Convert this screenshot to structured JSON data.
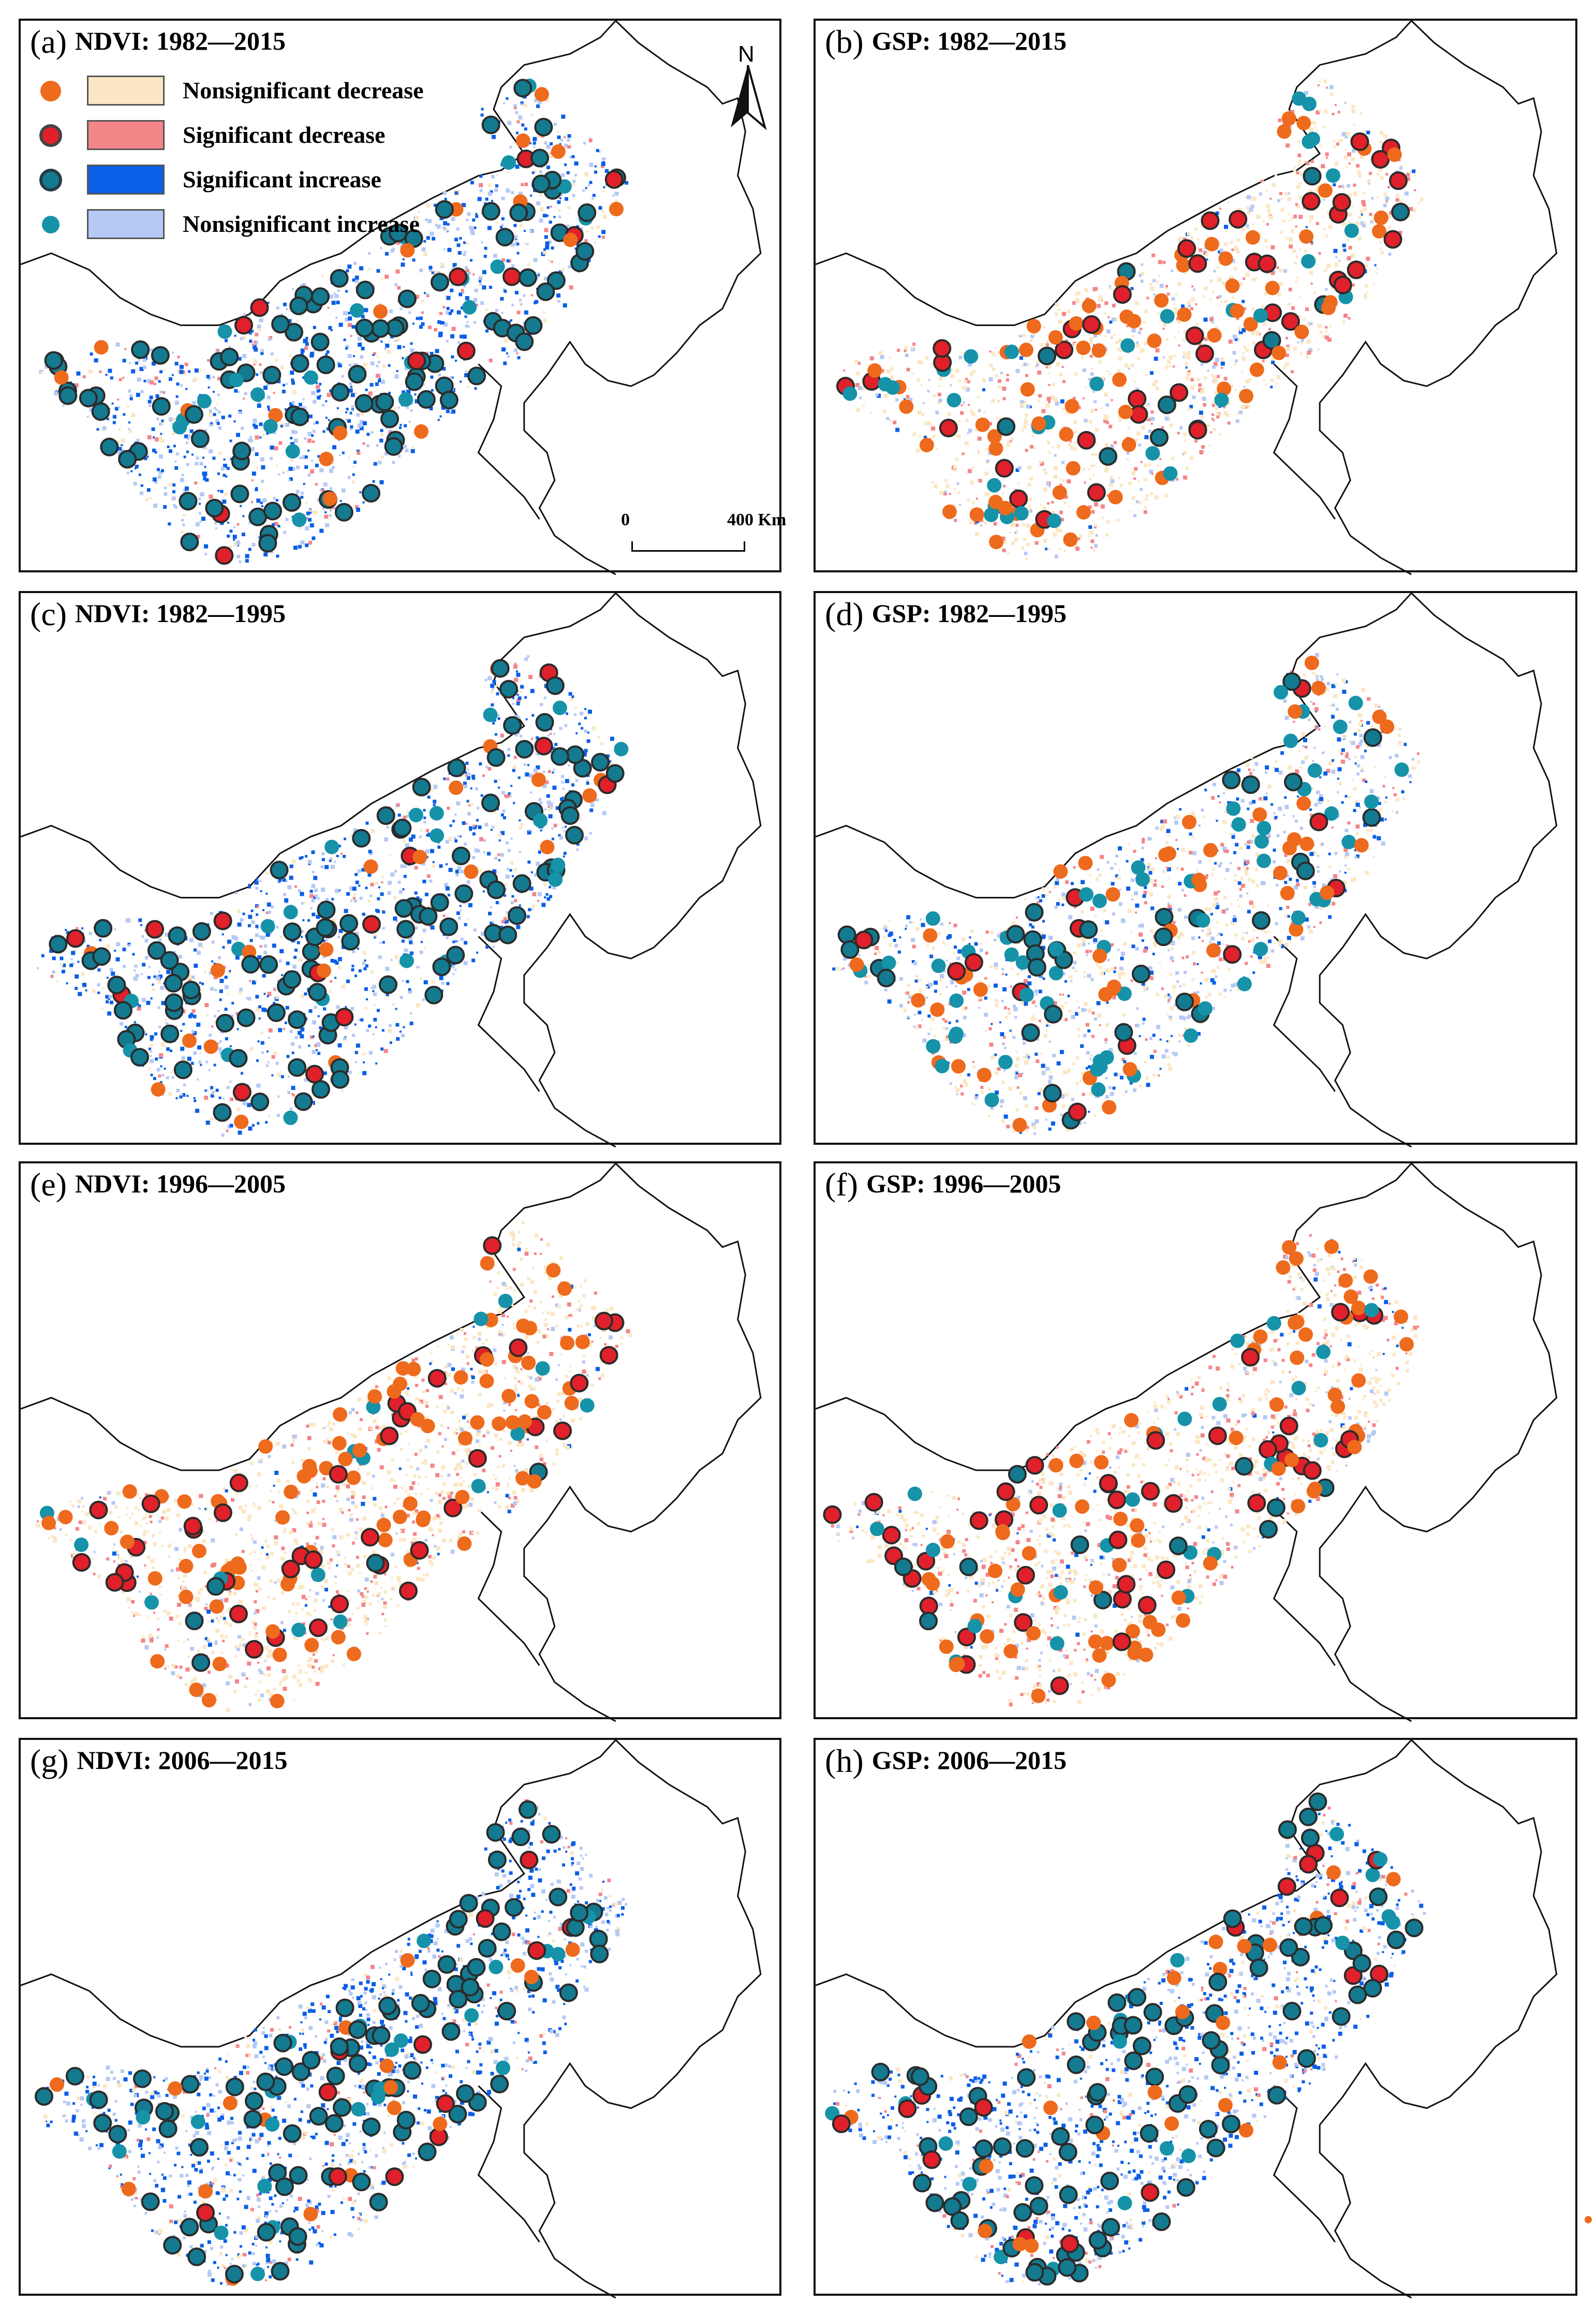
{
  "panels": [
    {
      "label": "(a)",
      "title": "NDVI: 1982—2015",
      "metric": "NDVI",
      "period": "1982–2015",
      "pattern": "increase"
    },
    {
      "label": "(b)",
      "title": "GSP: 1982—2015",
      "metric": "GSP",
      "period": "1982–2015",
      "pattern": "decrease"
    },
    {
      "label": "(c)",
      "title": "NDVI: 1982—1995",
      "metric": "NDVI",
      "period": "1982–1995",
      "pattern": "increase"
    },
    {
      "label": "(d)",
      "title": "GSP: 1982—1995",
      "metric": "GSP",
      "period": "1982–1995",
      "pattern": "mixed"
    },
    {
      "label": "(e)",
      "title": "NDVI: 1996—2005",
      "metric": "NDVI",
      "period": "1996–2005",
      "pattern": "decrease"
    },
    {
      "label": "(f)",
      "title": "GSP: 1996—2005",
      "metric": "GSP",
      "period": "1996–2005",
      "pattern": "decrease"
    },
    {
      "label": "(g)",
      "title": "NDVI: 2006—2015",
      "metric": "NDVI",
      "period": "2006–2015",
      "pattern": "increase"
    },
    {
      "label": "(h)",
      "title": "GSP: 2006—2015",
      "metric": "GSP",
      "period": "2006–2015",
      "pattern": "increase"
    }
  ],
  "legend": {
    "items": [
      {
        "label": "Nonsignificant decrease",
        "point_color": "#ee6a1c",
        "area_color": "#fbe7c4",
        "significant": false
      },
      {
        "label": "Significant decrease",
        "point_color": "#e8222a",
        "area_color": "#f4868a",
        "significant": true
      },
      {
        "label": "Significant increase",
        "point_color": "#137a90",
        "area_color": "#0b5fe6",
        "significant": true
      },
      {
        "label": "Nonsignificant increase",
        "point_color": "#1692a9",
        "area_color": "#b6c9f4",
        "significant": false
      }
    ]
  },
  "north_arrow": {
    "letter": "N"
  },
  "scale_bar": {
    "start": "0",
    "end": "400 Km"
  },
  "colors": {
    "ns_decrease_point": "#ee6a1c",
    "sig_decrease_point": "#e0202a",
    "sig_increase_point": "#137a90",
    "ns_increase_point": "#1692a9",
    "ns_decrease_area": "#fbe7c4",
    "sig_decrease_area": "#f4868a",
    "sig_increase_area": "#0b5fe6",
    "ns_increase_area": "#b6c9f4",
    "boundary": "#111111"
  }
}
